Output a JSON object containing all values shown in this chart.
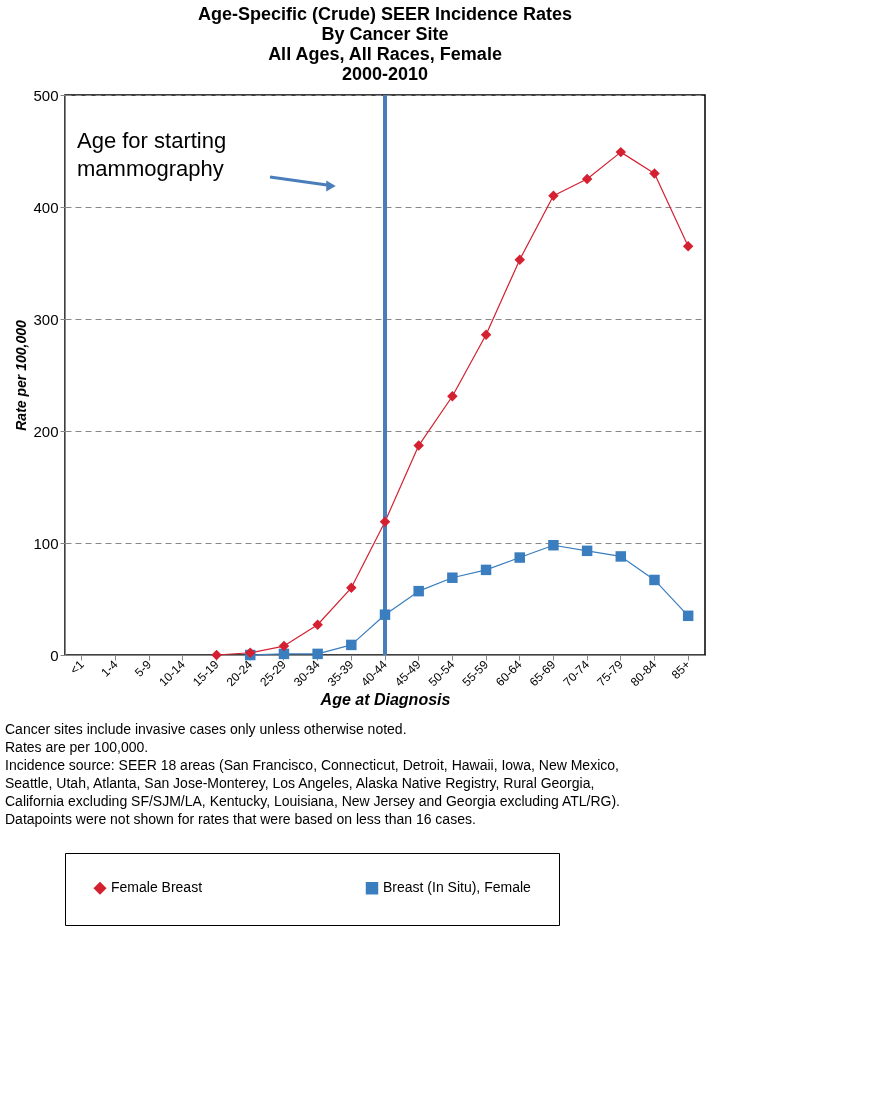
{
  "chart_data": {
    "type": "line",
    "title": [
      "Age-Specific (Crude) SEER Incidence Rates",
      "By Cancer Site",
      "All Ages, All Races, Female",
      "2000-2010"
    ],
    "xlabel": "Age at Diagnosis",
    "ylabel": "Rate per 100,000",
    "categories": [
      "<1",
      "1-4",
      "5-9",
      "10-14",
      "15-19",
      "20-24",
      "25-29",
      "30-34",
      "35-39",
      "40-44",
      "45-49",
      "50-54",
      "55-59",
      "60-64",
      "65-69",
      "70-74",
      "75-79",
      "80-84",
      "85+"
    ],
    "series": [
      {
        "name": "Female Breast",
        "color": "#d42030",
        "marker": "diamond",
        "values": [
          null,
          null,
          null,
          null,
          0,
          2,
          8,
          27,
          60,
          119,
          187,
          231,
          286,
          353,
          410,
          425,
          449,
          430,
          365
        ]
      },
      {
        "name": "Breast (In Situ), Female",
        "color": "#3a7ebf",
        "marker": "square",
        "values": [
          null,
          null,
          null,
          null,
          null,
          0,
          1,
          1,
          9,
          36,
          57,
          69,
          76,
          87,
          98,
          93,
          88,
          67,
          35
        ]
      }
    ],
    "ylim": [
      0,
      500
    ],
    "yticks": [
      0,
      100,
      200,
      300,
      400,
      500
    ],
    "grid": "y",
    "legend": "bottom",
    "ref_lines": [
      {
        "axis": "x",
        "value": "40-44",
        "label": null,
        "color": "#4a7ebb"
      }
    ],
    "annotations": [
      "Age for starting mammography",
      "Cancer sites include invasive cases only unless otherwise noted.",
      "Rates are per 100,000.",
      "Incidence source: SEER 18 areas (San Francisco, Connecticut, Detroit, Hawaii, Iowa, New Mexico, Seattle, Utah, Atlanta, San Jose-Monterey, Los Angeles, Alaska Native Registry, Rural Georgia, California excluding SF/SJM/LA, Kentucky, Louisiana, New Jersey and Georgia excluding ATL/RG).",
      "Datapoints were not shown for rates that were based on less than 16 cases."
    ]
  }
}
